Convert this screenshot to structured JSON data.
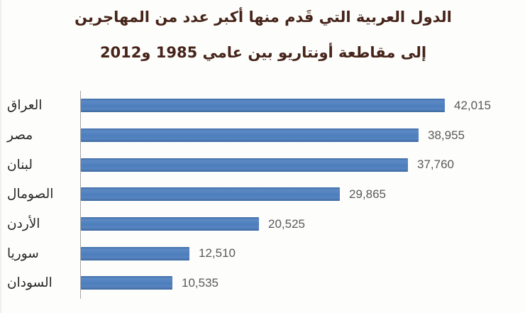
{
  "colors": {
    "background": "#fdfdfb",
    "bar": "#4d7ebd",
    "axis": "#a6a6a6",
    "value_text": "#595959",
    "category_text": "#262626",
    "title_text": "#46241a"
  },
  "chart_data": {
    "type": "bar",
    "orientation": "horizontal",
    "title_lines": [
      "الدول العربية التي قَدم منها أكبر عدد من المهاجرين",
      "إلى مقاطعة أونتاريو بين عامي 1985 و2012"
    ],
    "categories": [
      "العراق",
      "مصر",
      "لبنان",
      "الصومال",
      "الأردن",
      "سوريا",
      "السودان"
    ],
    "values": [
      42015,
      38955,
      37760,
      29865,
      20525,
      12510,
      10535
    ],
    "value_labels": [
      "42,015",
      "38,955",
      "37,760",
      "29,865",
      "20,525",
      "12,510",
      "10,535"
    ],
    "xlim": [
      0,
      45000
    ],
    "grid": false,
    "legend": false,
    "data_labels_position": "end-of-bar"
  }
}
